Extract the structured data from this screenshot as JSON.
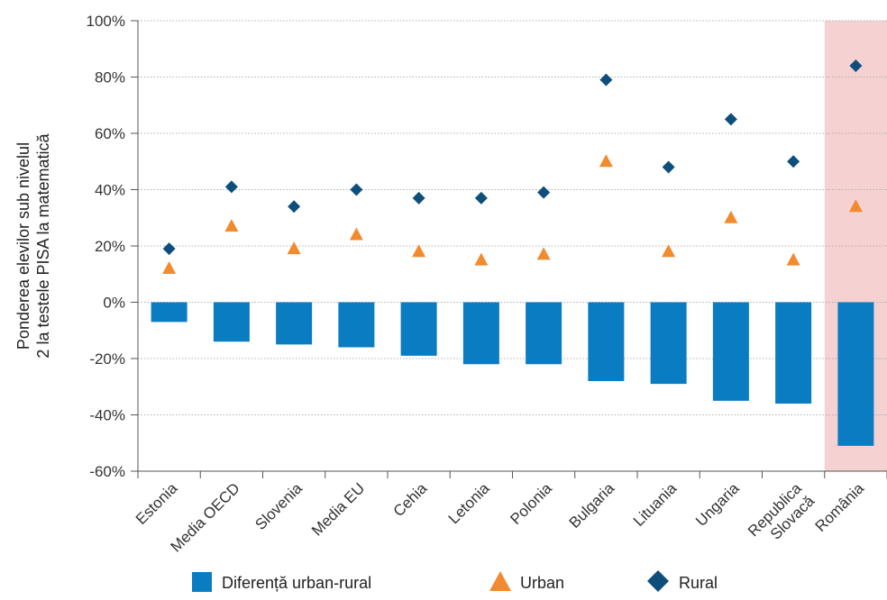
{
  "chart_data": {
    "type": "bar",
    "title": "",
    "ylabel": [
      "Ponderea elevilor sub nivelul",
      "2 la testele PISA la matematică"
    ],
    "xlabel": "",
    "ylim": [
      -60,
      100
    ],
    "yticks": [
      100,
      80,
      60,
      40,
      20,
      0,
      -20,
      -40,
      -60
    ],
    "ytick_labels": [
      "100%",
      "80%",
      "60%",
      "40%",
      "20%",
      "0%",
      "-20%",
      "-40%",
      "-60%"
    ],
    "grid": true,
    "legend_position": "bottom",
    "categories": [
      [
        "Estonia"
      ],
      [
        "Media OECD"
      ],
      [
        "Slovenia"
      ],
      [
        "Media EU"
      ],
      [
        "Cehia"
      ],
      [
        "Letonia"
      ],
      [
        "Polonia"
      ],
      [
        "Bulgaria"
      ],
      [
        "Lituania"
      ],
      [
        "Ungaria"
      ],
      [
        "Republica",
        "Slovacă"
      ],
      [
        "România"
      ]
    ],
    "highlighted_category": "România",
    "series": [
      {
        "name": "Diferență urban-rural",
        "type": "bar",
        "color": "#0a7cc1",
        "values": [
          -7,
          -14,
          -15,
          -16,
          -19,
          -22,
          -22,
          -28,
          -29,
          -35,
          -36,
          -51
        ]
      },
      {
        "name": "Urban",
        "type": "scatter",
        "marker": "triangle",
        "color": "#f28a2e",
        "values": [
          12,
          27,
          19,
          24,
          18,
          15,
          17,
          50,
          18,
          30,
          15,
          34
        ]
      },
      {
        "name": "Rural",
        "type": "scatter",
        "marker": "diamond",
        "color": "#0e4e7c",
        "values": [
          19,
          41,
          34,
          40,
          37,
          37,
          39,
          79,
          48,
          65,
          50,
          84
        ]
      }
    ],
    "colors": {
      "highlight_band": "#f5d1d1",
      "grid": "#b0b0b0",
      "axis": "#555555"
    }
  }
}
